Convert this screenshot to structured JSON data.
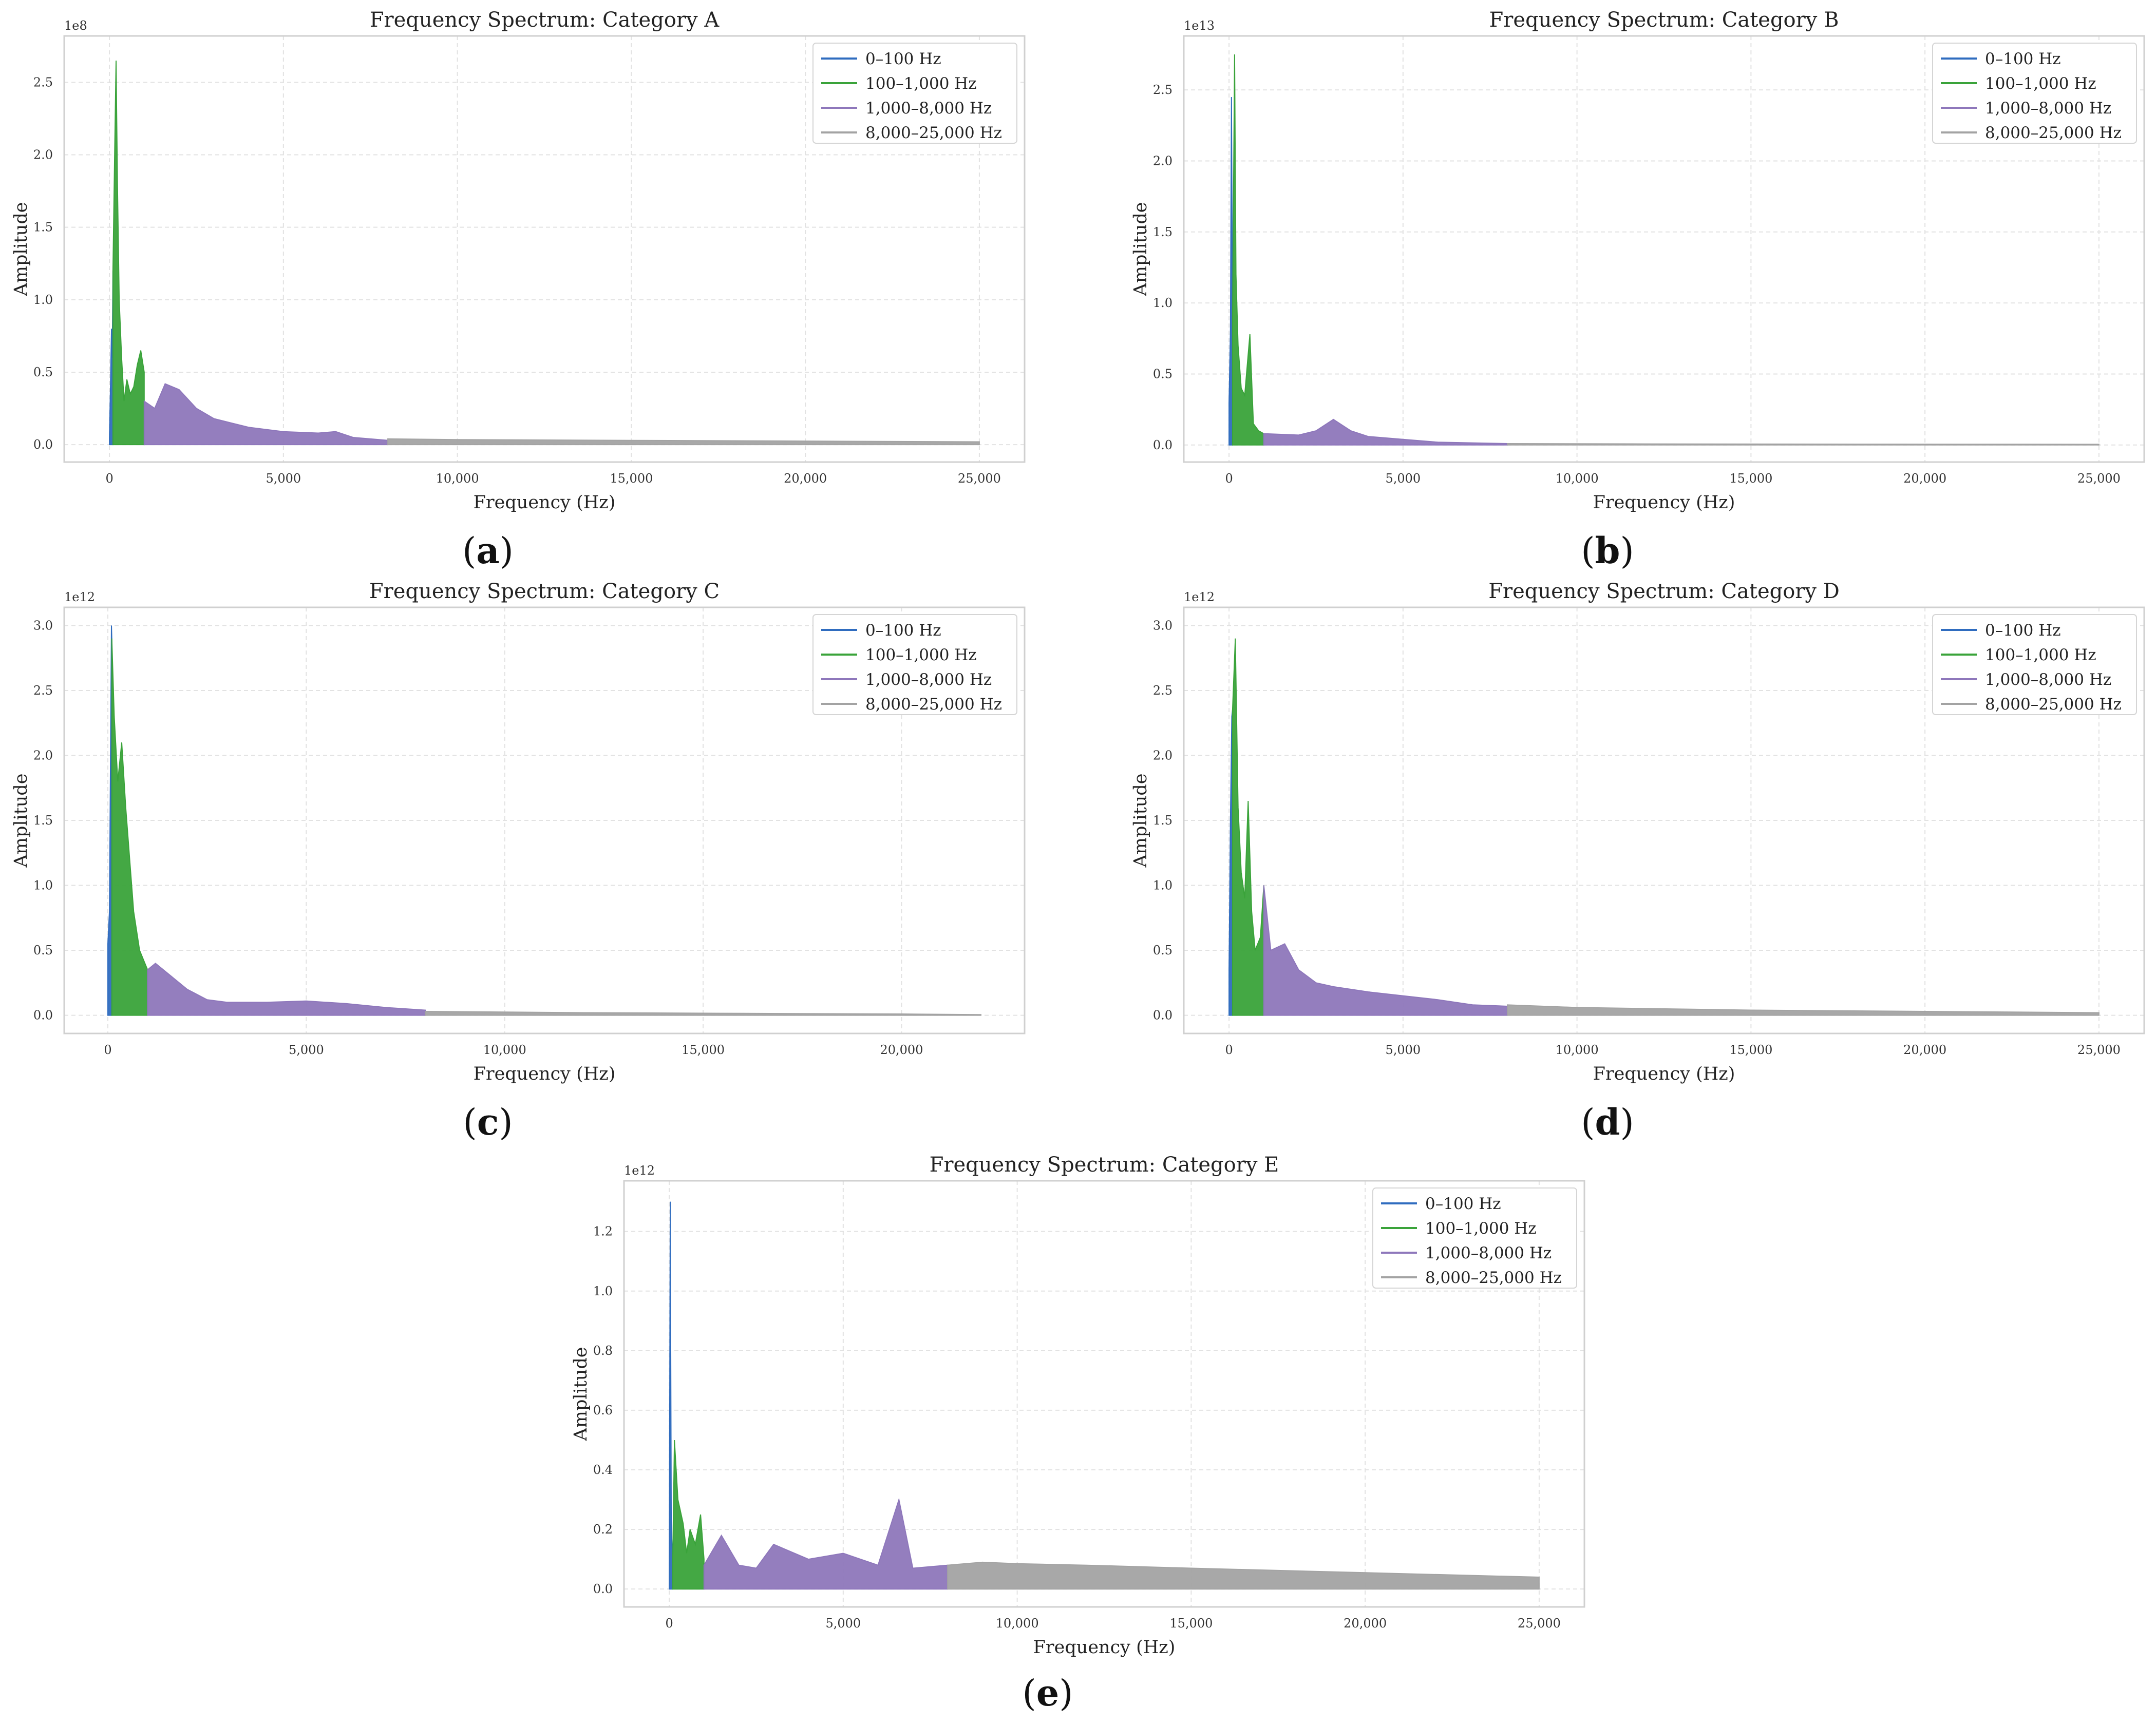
{
  "colors": {
    "band1": "#2f6cbf",
    "band2": "#3aa33a",
    "band3": "#8e77bb",
    "band4": "#a3a3a3"
  },
  "chart_data": [
    {
      "type": "area",
      "panel": "(a)",
      "letter": "a",
      "title": "Frequency Spectrum: Category A",
      "xlabel": "Frequency (Hz)",
      "ylabel": "Amplitude",
      "multiplier": "1e8",
      "xlim": [
        -1300,
        26300
      ],
      "ylim": [
        -0.12,
        2.82
      ],
      "xticks": [
        0,
        5000,
        10000,
        15000,
        20000,
        25000
      ],
      "xtick_labels": [
        "0",
        "5,000",
        "10,000",
        "15,000",
        "20,000",
        "25,000"
      ],
      "yticks": [
        0,
        0.5,
        1.0,
        1.5,
        2.0,
        2.5
      ],
      "ytick_labels": [
        "0.0",
        "0.5",
        "1.0",
        "1.5",
        "2.0",
        "2.5"
      ],
      "legend": [
        "0–100 Hz",
        "100–1,000 Hz",
        "1,000–8,000 Hz",
        "8,000–25,000 Hz"
      ],
      "series": [
        {
          "name": "0–100 Hz",
          "color": "#2f6cbf",
          "points": [
            [
              0,
              0.05
            ],
            [
              30,
              0.4
            ],
            [
              60,
              0.8
            ],
            [
              80,
              0.6
            ],
            [
              100,
              1.2
            ]
          ]
        },
        {
          "name": "100–1,000 Hz",
          "color": "#3aa33a",
          "points": [
            [
              100,
              1.2
            ],
            [
              150,
              2.0
            ],
            [
              190,
              2.65
            ],
            [
              230,
              1.8
            ],
            [
              280,
              1.0
            ],
            [
              350,
              0.6
            ],
            [
              420,
              0.3
            ],
            [
              500,
              0.45
            ],
            [
              600,
              0.35
            ],
            [
              700,
              0.4
            ],
            [
              800,
              0.55
            ],
            [
              900,
              0.65
            ],
            [
              1000,
              0.5
            ]
          ]
        },
        {
          "name": "1,000–8,000 Hz",
          "color": "#8e77bb",
          "points": [
            [
              1000,
              0.3
            ],
            [
              1300,
              0.25
            ],
            [
              1600,
              0.42
            ],
            [
              2000,
              0.38
            ],
            [
              2500,
              0.25
            ],
            [
              3000,
              0.18
            ],
            [
              3500,
              0.15
            ],
            [
              4000,
              0.12
            ],
            [
              5000,
              0.09
            ],
            [
              6000,
              0.08
            ],
            [
              6500,
              0.09
            ],
            [
              7000,
              0.05
            ],
            [
              8000,
              0.03
            ]
          ]
        },
        {
          "name": "8,000–25,000 Hz",
          "color": "#a3a3a3",
          "points": [
            [
              8000,
              0.04
            ],
            [
              10000,
              0.035
            ],
            [
              15000,
              0.03
            ],
            [
              20000,
              0.025
            ],
            [
              25000,
              0.02
            ]
          ]
        }
      ]
    },
    {
      "type": "area",
      "panel": "(b)",
      "letter": "b",
      "title": "Frequency Spectrum: Category B",
      "xlabel": "Frequency (Hz)",
      "ylabel": "Amplitude",
      "multiplier": "1e13",
      "xlim": [
        -1300,
        26300
      ],
      "ylim": [
        -0.12,
        2.88
      ],
      "xticks": [
        0,
        5000,
        10000,
        15000,
        20000,
        25000
      ],
      "xtick_labels": [
        "0",
        "5,000",
        "10,000",
        "15,000",
        "20,000",
        "25,000"
      ],
      "yticks": [
        0,
        0.5,
        1.0,
        1.5,
        2.0,
        2.5
      ],
      "ytick_labels": [
        "0.0",
        "0.5",
        "1.0",
        "1.5",
        "2.0",
        "2.5"
      ],
      "legend": [
        "0–100 Hz",
        "100–1,000 Hz",
        "1,000–8,000 Hz",
        "8,000–25,000 Hz"
      ],
      "series": [
        {
          "name": "0–100 Hz",
          "color": "#2f6cbf",
          "points": [
            [
              0,
              0.3
            ],
            [
              40,
              0.8
            ],
            [
              70,
              2.45
            ],
            [
              100,
              0.9
            ]
          ]
        },
        {
          "name": "100–1,000 Hz",
          "color": "#3aa33a",
          "points": [
            [
              100,
              0.9
            ],
            [
              160,
              2.75
            ],
            [
              200,
              1.2
            ],
            [
              260,
              0.7
            ],
            [
              350,
              0.4
            ],
            [
              450,
              0.35
            ],
            [
              600,
              0.78
            ],
            [
              700,
              0.15
            ],
            [
              850,
              0.1
            ],
            [
              1000,
              0.08
            ]
          ]
        },
        {
          "name": "1,000–8,000 Hz",
          "color": "#8e77bb",
          "points": [
            [
              1000,
              0.08
            ],
            [
              2000,
              0.07
            ],
            [
              2500,
              0.1
            ],
            [
              3000,
              0.18
            ],
            [
              3500,
              0.1
            ],
            [
              4000,
              0.06
            ],
            [
              5000,
              0.04
            ],
            [
              6000,
              0.02
            ],
            [
              8000,
              0.01
            ]
          ]
        },
        {
          "name": "8,000–25,000 Hz",
          "color": "#a3a3a3",
          "points": [
            [
              8000,
              0.01
            ],
            [
              12000,
              0.008
            ],
            [
              18000,
              0.006
            ],
            [
              25000,
              0.005
            ]
          ]
        }
      ]
    },
    {
      "type": "area",
      "panel": "(c)",
      "letter": "c",
      "title": "Frequency Spectrum: Category C",
      "xlabel": "Frequency (Hz)",
      "ylabel": "Amplitude",
      "multiplier": "1e12",
      "xlim": [
        -1100,
        23100
      ],
      "ylim": [
        -0.14,
        3.14
      ],
      "xticks": [
        0,
        5000,
        10000,
        15000,
        20000
      ],
      "xtick_labels": [
        "0",
        "5,000",
        "10,000",
        "15,000",
        "20,000"
      ],
      "yticks": [
        0,
        0.5,
        1.0,
        1.5,
        2.0,
        2.5,
        3.0
      ],
      "ytick_labels": [
        "0.0",
        "0.5",
        "1.0",
        "1.5",
        "2.0",
        "2.5",
        "3.0"
      ],
      "legend": [
        "0–100 Hz",
        "100–1,000 Hz",
        "1,000–8,000 Hz",
        "8,000–25,000 Hz"
      ],
      "series": [
        {
          "name": "0–100 Hz",
          "color": "#2f6cbf",
          "points": [
            [
              0,
              0.55
            ],
            [
              40,
              0.8
            ],
            [
              90,
              3.0
            ],
            [
              100,
              2.9
            ]
          ]
        },
        {
          "name": "100–1,000 Hz",
          "color": "#3aa33a",
          "points": [
            [
              100,
              2.9
            ],
            [
              160,
              2.3
            ],
            [
              250,
              1.8
            ],
            [
              350,
              2.1
            ],
            [
              450,
              1.6
            ],
            [
              550,
              1.2
            ],
            [
              650,
              0.8
            ],
            [
              800,
              0.5
            ],
            [
              1000,
              0.35
            ]
          ]
        },
        {
          "name": "1,000–8,000 Hz",
          "color": "#8e77bb",
          "points": [
            [
              1000,
              0.35
            ],
            [
              1200,
              0.4
            ],
            [
              1600,
              0.3
            ],
            [
              2000,
              0.2
            ],
            [
              2500,
              0.12
            ],
            [
              3000,
              0.1
            ],
            [
              4000,
              0.1
            ],
            [
              5000,
              0.11
            ],
            [
              6000,
              0.09
            ],
            [
              7000,
              0.06
            ],
            [
              8000,
              0.04
            ]
          ]
        },
        {
          "name": "8,000–25,000 Hz",
          "color": "#a3a3a3",
          "points": [
            [
              8000,
              0.03
            ],
            [
              12000,
              0.02
            ],
            [
              16000,
              0.015
            ],
            [
              20000,
              0.01
            ],
            [
              22000,
              0.005
            ]
          ]
        }
      ]
    },
    {
      "type": "area",
      "panel": "(d)",
      "letter": "d",
      "title": "Frequency Spectrum: Category D",
      "xlabel": "Frequency (Hz)",
      "ylabel": "Amplitude",
      "multiplier": "1e12",
      "xlim": [
        -1300,
        26300
      ],
      "ylim": [
        -0.14,
        3.14
      ],
      "xticks": [
        0,
        5000,
        10000,
        15000,
        20000,
        25000
      ],
      "xtick_labels": [
        "0",
        "5,000",
        "10,000",
        "15,000",
        "20,000",
        "25,000"
      ],
      "yticks": [
        0,
        0.5,
        1.0,
        1.5,
        2.0,
        2.5,
        3.0
      ],
      "ytick_labels": [
        "0.0",
        "0.5",
        "1.0",
        "1.5",
        "2.0",
        "2.5",
        "3.0"
      ],
      "legend": [
        "0–100 Hz",
        "100–1,000 Hz",
        "1,000–8,000 Hz",
        "8,000–25,000 Hz"
      ],
      "series": [
        {
          "name": "0–100 Hz",
          "color": "#2f6cbf",
          "points": [
            [
              0,
              0.35
            ],
            [
              40,
              1.5
            ],
            [
              80,
              2.3
            ],
            [
              100,
              2.35
            ]
          ]
        },
        {
          "name": "100–1,000 Hz",
          "color": "#3aa33a",
          "points": [
            [
              100,
              2.35
            ],
            [
              180,
              2.9
            ],
            [
              260,
              1.6
            ],
            [
              350,
              1.1
            ],
            [
              450,
              0.9
            ],
            [
              550,
              1.65
            ],
            [
              650,
              0.8
            ],
            [
              750,
              0.5
            ],
            [
              900,
              0.6
            ],
            [
              1000,
              1.0
            ]
          ]
        },
        {
          "name": "1,000–8,000 Hz",
          "color": "#8e77bb",
          "points": [
            [
              1000,
              1.0
            ],
            [
              1200,
              0.5
            ],
            [
              1600,
              0.55
            ],
            [
              2000,
              0.35
            ],
            [
              2500,
              0.25
            ],
            [
              3000,
              0.22
            ],
            [
              4000,
              0.18
            ],
            [
              5000,
              0.15
            ],
            [
              6000,
              0.12
            ],
            [
              7000,
              0.08
            ],
            [
              8000,
              0.07
            ]
          ]
        },
        {
          "name": "8,000–25,000 Hz",
          "color": "#a3a3a3",
          "points": [
            [
              8000,
              0.08
            ],
            [
              10000,
              0.06
            ],
            [
              15000,
              0.04
            ],
            [
              20000,
              0.03
            ],
            [
              25000,
              0.02
            ]
          ]
        }
      ]
    },
    {
      "type": "area",
      "panel": "(e)",
      "letter": "e",
      "title": "Frequency Spectrum: Category E",
      "xlabel": "Frequency (Hz)",
      "ylabel": "Amplitude",
      "multiplier": "1e12",
      "xlim": [
        -1300,
        26300
      ],
      "ylim": [
        -0.06,
        1.37
      ],
      "xticks": [
        0,
        5000,
        10000,
        15000,
        20000,
        25000
      ],
      "xtick_labels": [
        "0",
        "5,000",
        "10,000",
        "15,000",
        "20,000",
        "25,000"
      ],
      "yticks": [
        0,
        0.2,
        0.4,
        0.6,
        0.8,
        1.0,
        1.2
      ],
      "ytick_labels": [
        "0.0",
        "0.2",
        "0.4",
        "0.6",
        "0.8",
        "1.0",
        "1.2"
      ],
      "legend": [
        "0–100 Hz",
        "100–1,000 Hz",
        "1,000–8,000 Hz",
        "8,000–25,000 Hz"
      ],
      "series": [
        {
          "name": "0–100 Hz",
          "color": "#2f6cbf",
          "points": [
            [
              0,
              0.05
            ],
            [
              30,
              1.3
            ],
            [
              60,
              0.2
            ],
            [
              100,
              0.1
            ]
          ]
        },
        {
          "name": "100–1,000 Hz",
          "color": "#3aa33a",
          "points": [
            [
              100,
              0.1
            ],
            [
              150,
              0.5
            ],
            [
              250,
              0.3
            ],
            [
              400,
              0.22
            ],
            [
              500,
              0.12
            ],
            [
              600,
              0.2
            ],
            [
              750,
              0.15
            ],
            [
              900,
              0.25
            ],
            [
              1000,
              0.1
            ]
          ]
        },
        {
          "name": "1,000–8,000 Hz",
          "color": "#8e77bb",
          "points": [
            [
              1000,
              0.08
            ],
            [
              1500,
              0.18
            ],
            [
              2000,
              0.08
            ],
            [
              2500,
              0.07
            ],
            [
              3000,
              0.15
            ],
            [
              4000,
              0.1
            ],
            [
              5000,
              0.12
            ],
            [
              6000,
              0.08
            ],
            [
              6600,
              0.3
            ],
            [
              7000,
              0.07
            ],
            [
              8000,
              0.08
            ]
          ]
        },
        {
          "name": "8,000–25,000 Hz",
          "color": "#a3a3a3",
          "points": [
            [
              8000,
              0.08
            ],
            [
              9000,
              0.09
            ],
            [
              10000,
              0.085
            ],
            [
              12000,
              0.08
            ],
            [
              15000,
              0.07
            ],
            [
              20000,
              0.055
            ],
            [
              25000,
              0.04
            ]
          ]
        }
      ]
    }
  ]
}
